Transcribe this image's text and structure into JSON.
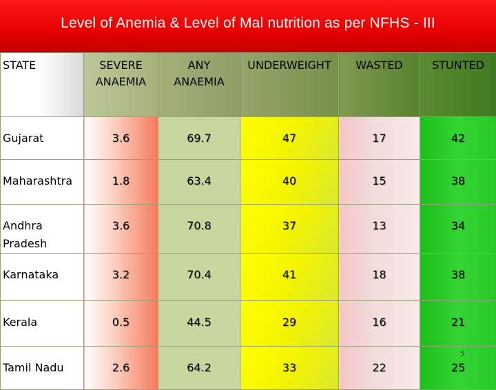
{
  "title": "Level of Anemia & Level of Mal nutrition as per NFHS - III",
  "table": {
    "headers": {
      "state": "STATE",
      "severe_line1": "SEVERE",
      "severe_line2": "ANAEMIA",
      "any_line1": "ANY",
      "any_line2": "ANAEMIA",
      "underweight": "UNDERWEIGHT",
      "wasted": "WASTED",
      "stunted": "STUNTED"
    },
    "rows": [
      {
        "state": "Gujarat",
        "severe": "3.6",
        "any": "69.7",
        "underweight": "47",
        "wasted": "17",
        "stunted": "42"
      },
      {
        "state": "Maharashtra",
        "severe": "1.8",
        "any": "63.4",
        "underweight": "40",
        "wasted": "15",
        "stunted": "38"
      },
      {
        "state": "Andhra Pradesh",
        "severe": "3.6",
        "any": "70.8",
        "underweight": "37",
        "wasted": "13",
        "stunted": "34"
      },
      {
        "state": "Karnataka",
        "severe": "3.2",
        "any": "70.4",
        "underweight": "41",
        "wasted": "18",
        "stunted": "38"
      },
      {
        "state": "Kerala",
        "severe": "0.5",
        "any": "44.5",
        "underweight": "29",
        "wasted": "16",
        "stunted": "21"
      },
      {
        "state": "Tamil Nadu",
        "severe": "2.6",
        "any": "64.2",
        "underweight": "33",
        "wasted": "22",
        "stunted": "25"
      }
    ]
  },
  "page_number": "5",
  "colors": {
    "title_bg": "#e60000",
    "severe_col": "#f57a5c",
    "any_col": "#c8d7a0",
    "underweight_col": "#ffff00",
    "wasted_col": "#f5c6c6",
    "stunted_col": "#28c828"
  }
}
